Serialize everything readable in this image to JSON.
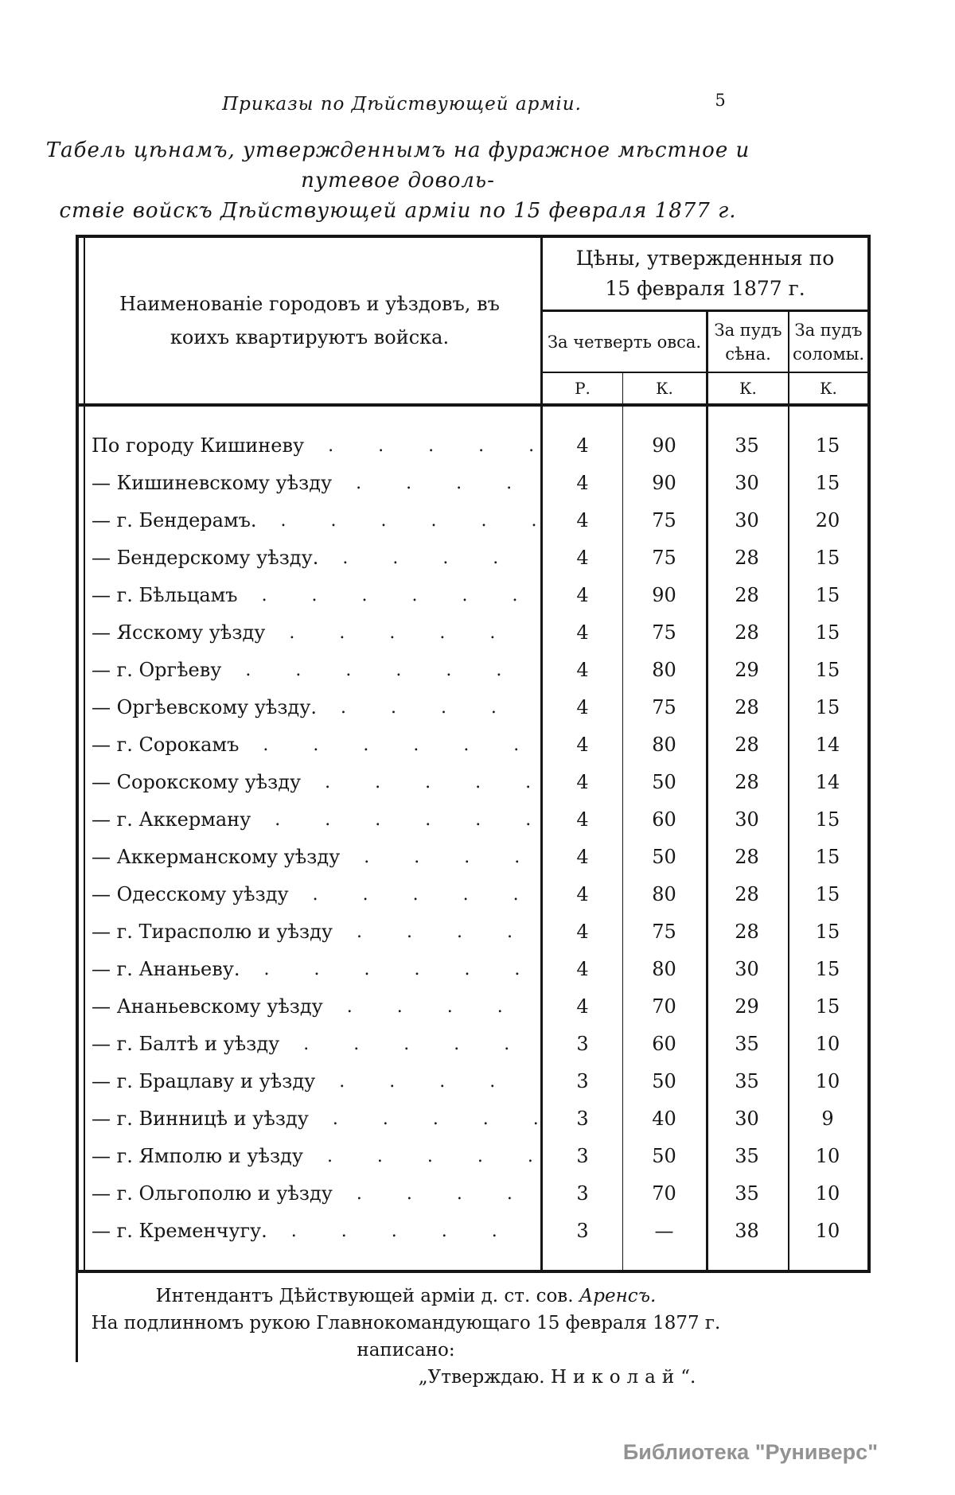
{
  "page": {
    "running_header": "Приказы по Дѣйствующей арміи.",
    "page_number": "5",
    "title_line1": "Табель цѣнамъ, утвержденнымъ на фуражное мѣстное и путевое доволь-",
    "title_line2": "ствіе войскъ Дѣйствующей арміи по 15 февраля 1877 г."
  },
  "table": {
    "name_header": "Наименованіе городовъ и уѣздовъ, въ коихъ квартируютъ войска.",
    "prices_header_line1": "Цѣны, утвержденныя по",
    "prices_header_line2": "15 февраля 1877 г.",
    "col_oats": "За четверть овса.",
    "col_hay": "За пудъ сѣна.",
    "col_straw": "За пудъ соломы.",
    "unit_rubles": "Р.",
    "unit_kopecks": "К.",
    "leader_dots": "........................",
    "rows": [
      {
        "name": "По городу Кишиневу",
        "r": "4",
        "k": "90",
        "hay": "35",
        "straw": "15"
      },
      {
        "name": "— Кишиневскому уѣзду",
        "r": "4",
        "k": "90",
        "hay": "30",
        "straw": "15"
      },
      {
        "name": "— г. Бендерамъ.",
        "r": "4",
        "k": "75",
        "hay": "30",
        "straw": "20"
      },
      {
        "name": "— Бендерскому уѣзду.",
        "r": "4",
        "k": "75",
        "hay": "28",
        "straw": "15"
      },
      {
        "name": "— г. Бѣльцамъ",
        "r": "4",
        "k": "90",
        "hay": "28",
        "straw": "15"
      },
      {
        "name": "— Ясскому уѣзду",
        "r": "4",
        "k": "75",
        "hay": "28",
        "straw": "15"
      },
      {
        "name": "— г. Оргѣеву",
        "r": "4",
        "k": "80",
        "hay": "29",
        "straw": "15"
      },
      {
        "name": "— Оргѣевскому уѣзду.",
        "r": "4",
        "k": "75",
        "hay": "28",
        "straw": "15"
      },
      {
        "name": "— г. Сорокамъ",
        "r": "4",
        "k": "80",
        "hay": "28",
        "straw": "14"
      },
      {
        "name": "— Сорокскому уѣзду",
        "r": "4",
        "k": "50",
        "hay": "28",
        "straw": "14"
      },
      {
        "name": "— г. Аккерману",
        "r": "4",
        "k": "60",
        "hay": "30",
        "straw": "15"
      },
      {
        "name": "— Аккерманскому уѣзду",
        "r": "4",
        "k": "50",
        "hay": "28",
        "straw": "15"
      },
      {
        "name": "— Одесскому уѣзду",
        "r": "4",
        "k": "80",
        "hay": "28",
        "straw": "15"
      },
      {
        "name": "— г. Тирасполю и уѣзду",
        "r": "4",
        "k": "75",
        "hay": "28",
        "straw": "15"
      },
      {
        "name": "— г. Ананьеву.",
        "r": "4",
        "k": "80",
        "hay": "30",
        "straw": "15"
      },
      {
        "name": "— Ананьевскому уѣзду",
        "r": "4",
        "k": "70",
        "hay": "29",
        "straw": "15"
      },
      {
        "name": "— г. Балтѣ и уѣзду",
        "r": "3",
        "k": "60",
        "hay": "35",
        "straw": "10"
      },
      {
        "name": "— г. Брацлаву и уѣзду",
        "r": "3",
        "k": "50",
        "hay": "35",
        "straw": "10"
      },
      {
        "name": "— г. Винницѣ и уѣзду",
        "r": "3",
        "k": "40",
        "hay": "30",
        "straw": "9"
      },
      {
        "name": "— г. Ямполю и уѣзду",
        "r": "3",
        "k": "50",
        "hay": "35",
        "straw": "10"
      },
      {
        "name": "— г. Ольгополю и уѣзду",
        "r": "3",
        "k": "70",
        "hay": "35",
        "straw": "10"
      },
      {
        "name": "— г. Кременчугу.",
        "r": "3",
        "k": "—",
        "hay": "38",
        "straw": "10"
      }
    ]
  },
  "footer": {
    "line1_text": "Интендантъ Дѣйствующей арміи д. ст. сов. ",
    "line1_name": "Аренсъ.",
    "line2": "На подлинномъ рукою Главнокомандующаго 15 февраля 1877 г. написано:",
    "line3_prefix": "„Утверждаю. ",
    "line3_name": "Николай",
    "line3_suffix": "“."
  },
  "watermark": "Библиотека \"Руниверс\""
}
